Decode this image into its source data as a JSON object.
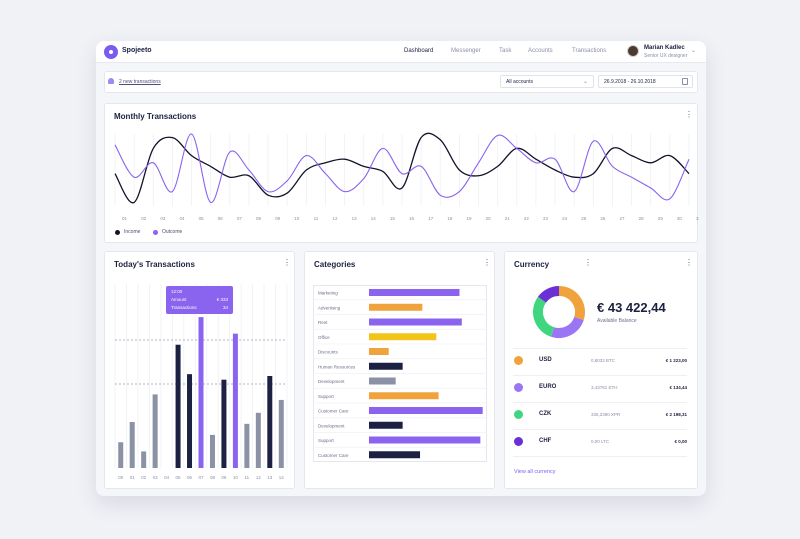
{
  "app": {
    "brand": "Spojeeto",
    "nav": [
      "Dashboard",
      "Messenger",
      "Task",
      "Accounts",
      "Transactions"
    ],
    "active_nav": "Dashboard",
    "user": {
      "name": "Marian Kadlec",
      "role": "Senior UX designer"
    }
  },
  "toolbar": {
    "notice": "2 new transactions",
    "account_select": "All accounts",
    "date_range": "26.9.2018 - 26.10.2018"
  },
  "monthly": {
    "title": "Monthly Transactions",
    "legend": [
      "Income",
      "Outcome"
    ]
  },
  "today": {
    "title": "Today's Transactions",
    "tooltip": {
      "time": "12:00",
      "amount_label": "Amount",
      "amount": "€ 333",
      "trans_label": "Transactions",
      "trans": "34"
    }
  },
  "categories": {
    "title": "Categories"
  },
  "currency": {
    "title": "Currency",
    "balance": "€ 43 422,44",
    "balance_label": "Available Balance",
    "rows": [
      {
        "code": "USD",
        "sub": "0,8032 BTC",
        "value": "€ 1 223,00",
        "color": "#f0a33c"
      },
      {
        "code": "EURO",
        "sub": "3,43781 ETH",
        "value": "€ 134,44",
        "color": "#9a76f4"
      },
      {
        "code": "CZK",
        "sub": "335,2390 XPR",
        "value": "€ 2 198,31",
        "color": "#3fd67f"
      },
      {
        "code": "CHF",
        "sub": "0,00 LTC",
        "value": "€ 0,00",
        "color": "#6b2fd6"
      }
    ],
    "view_all": "View all currency",
    "donut": [
      {
        "name": "USD",
        "value": 30,
        "color": "#f0a33c"
      },
      {
        "name": "EURO",
        "value": 25,
        "color": "#9a76f4"
      },
      {
        "name": "CZK",
        "value": 30,
        "color": "#3fd67f"
      },
      {
        "name": "CHF",
        "value": 15,
        "color": "#6b2fd6"
      }
    ]
  },
  "chart_data": [
    {
      "type": "line",
      "x": [
        "01",
        "02",
        "03",
        "04",
        "05",
        "06",
        "07",
        "08",
        "09",
        "10",
        "11",
        "12",
        "13",
        "14",
        "15",
        "16",
        "17",
        "18",
        "19",
        "20",
        "21",
        "22",
        "23",
        "24",
        "25",
        "26",
        "27",
        "28",
        "29",
        "30",
        "31"
      ],
      "series": [
        {
          "name": "Income",
          "color": "#12142a",
          "values": [
            45,
            5,
            80,
            95,
            70,
            55,
            40,
            42,
            15,
            18,
            50,
            60,
            65,
            55,
            48,
            25,
            95,
            92,
            50,
            42,
            55,
            80,
            65,
            50,
            40,
            45,
            80,
            70,
            60,
            70,
            45
          ]
        },
        {
          "name": "Outcome",
          "color": "#8a63ee",
          "values": [
            85,
            40,
            60,
            20,
            100,
            5,
            75,
            50,
            20,
            35,
            70,
            45,
            20,
            38,
            80,
            45,
            55,
            15,
            20,
            60,
            98,
            80,
            60,
            65,
            20,
            90,
            55,
            40,
            25,
            10,
            65
          ]
        }
      ],
      "ylim": [
        0,
        100
      ],
      "legend": "bottom-left"
    },
    {
      "type": "bar",
      "categories": [
        "00",
        "01",
        "02",
        "03",
        "04",
        "05",
        "06",
        "07",
        "08",
        "09",
        "10",
        "11",
        "12",
        "13",
        "14"
      ],
      "series": [
        {
          "name": "slate",
          "color": "#8b92a6",
          "values": [
            14,
            25,
            9,
            40,
            0,
            0,
            0,
            0,
            18,
            0,
            0,
            24,
            30,
            0,
            37
          ]
        },
        {
          "name": "navy",
          "color": "#1c2042",
          "values": [
            0,
            0,
            0,
            0,
            0,
            67,
            51,
            0,
            0,
            48,
            0,
            0,
            0,
            50,
            0
          ]
        },
        {
          "name": "purple",
          "color": "#8a63ee",
          "values": [
            0,
            0,
            0,
            0,
            0,
            0,
            0,
            82,
            0,
            0,
            73,
            0,
            0,
            0,
            0
          ]
        }
      ],
      "ylim": [
        0,
        100
      ]
    },
    {
      "type": "bar",
      "orientation": "horizontal",
      "categories": [
        "Marketing",
        "Advertising",
        "Rent",
        "Office",
        "Discounts",
        "Human Resources",
        "Development",
        "Support",
        "Customer Care",
        "Development",
        "Support",
        "Customer Care"
      ],
      "values": [
        78,
        46,
        80,
        58,
        17,
        29,
        23,
        60,
        98,
        29,
        96,
        44
      ],
      "colors": [
        "#8a63ee",
        "#f0a33c",
        "#8a63ee",
        "#f2c318",
        "#f0a33c",
        "#1c2042",
        "#8b92a6",
        "#f0a33c",
        "#8a63ee",
        "#1c2042",
        "#8a63ee",
        "#1c2042"
      ],
      "xlim": [
        0,
        100
      ]
    }
  ]
}
